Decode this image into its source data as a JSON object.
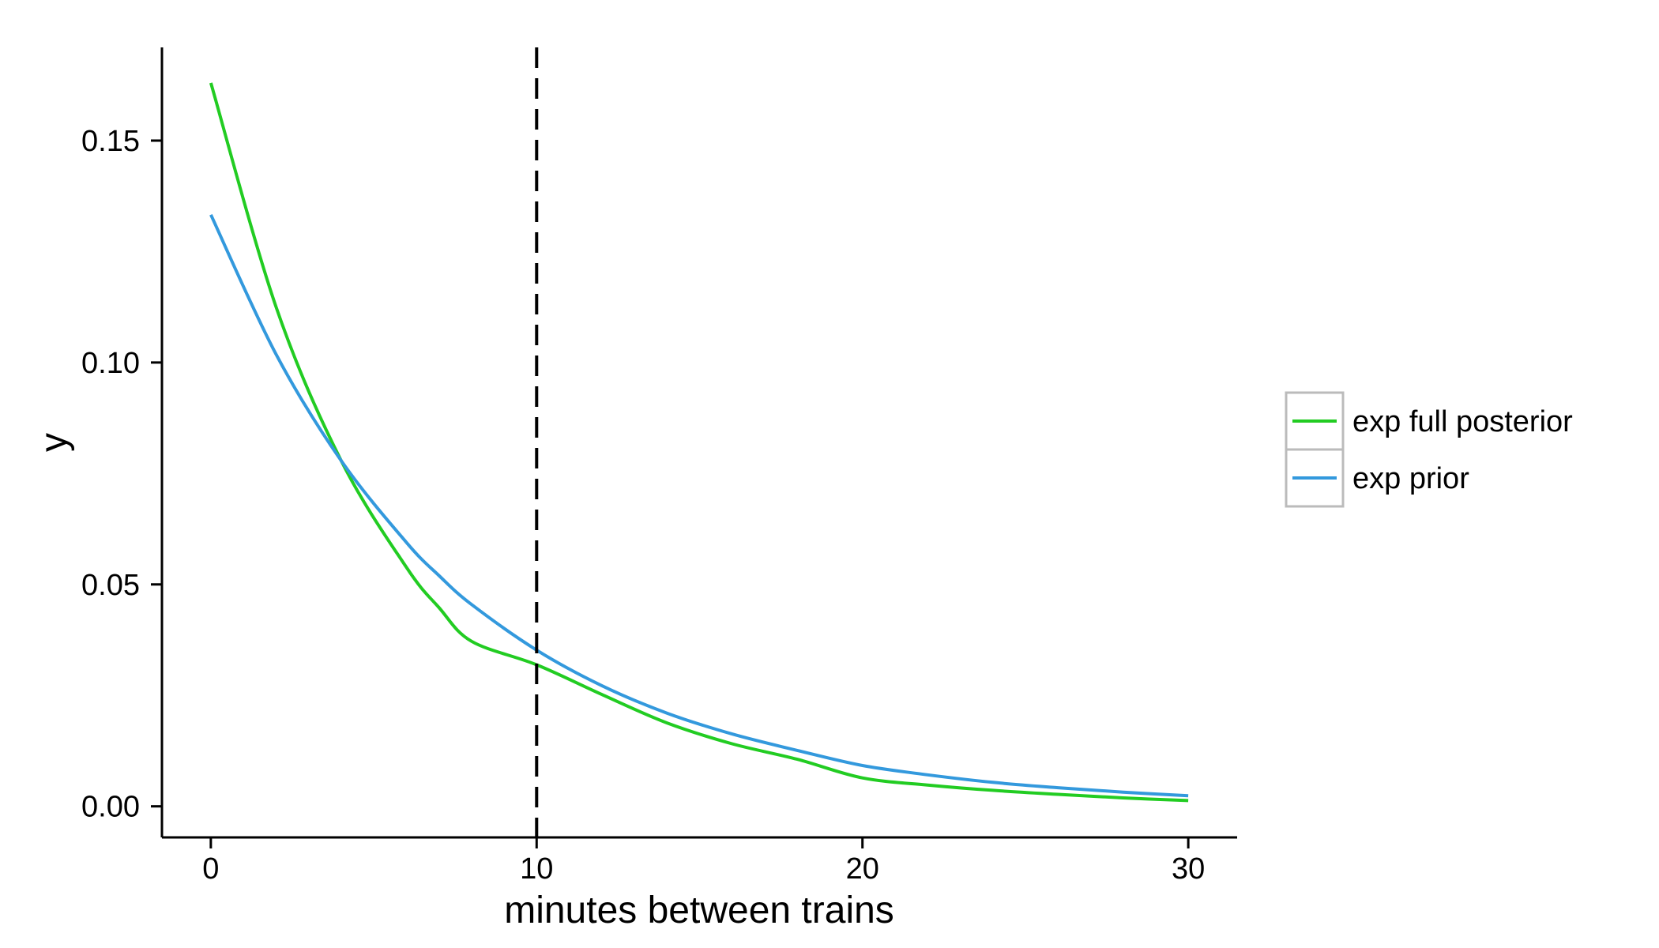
{
  "chart_data": {
    "type": "line",
    "title": "",
    "xlabel": "minutes between trains",
    "ylabel": "y",
    "xlim": [
      -1.5,
      31.5
    ],
    "ylim": [
      -0.007,
      0.171
    ],
    "xticks": [
      0,
      10,
      20,
      30
    ],
    "xtick_labels": [
      "0",
      "10",
      "20",
      "30"
    ],
    "yticks": [
      0.0,
      0.05,
      0.1,
      0.15
    ],
    "ytick_labels": [
      "0.00",
      "0.05",
      "0.10",
      "0.15"
    ],
    "grid": false,
    "legend_position": "right",
    "vline": {
      "x": 10,
      "style": "dashed",
      "color": "#000000"
    },
    "series": [
      {
        "name": "exp full posterior",
        "color": "#22cc22",
        "x": [
          0,
          2,
          4,
          6,
          7,
          8,
          10,
          12,
          14,
          16,
          18,
          20,
          22,
          24,
          26,
          28,
          30
        ],
        "values": [
          0.163,
          0.1126,
          0.0779,
          0.0539,
          0.0448,
          0.0372,
          0.0319,
          0.0252,
          0.0188,
          0.0141,
          0.0106,
          0.0064,
          0.0048,
          0.0036,
          0.0027,
          0.0019,
          0.0013
        ]
      },
      {
        "name": "exp prior",
        "color": "#3399dd",
        "x": [
          0,
          2,
          4,
          6,
          7,
          8,
          10,
          12,
          14,
          16,
          18,
          20,
          22,
          24,
          26,
          28,
          30
        ],
        "values": [
          0.1333,
          0.1019,
          0.0779,
          0.0595,
          0.052,
          0.0455,
          0.0352,
          0.0272,
          0.021,
          0.0163,
          0.0126,
          0.0092,
          0.0071,
          0.0054,
          0.0042,
          0.0032,
          0.0024
        ]
      }
    ]
  }
}
